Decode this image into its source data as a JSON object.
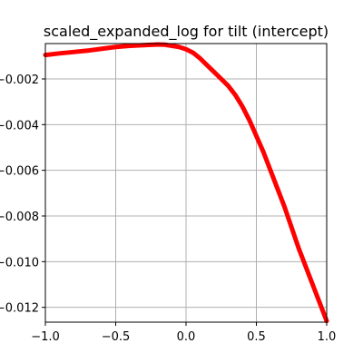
{
  "chart_data": {
    "type": "line",
    "title": "scaled_expanded_log for tilt (intercept)",
    "xlabel": "",
    "ylabel": "",
    "xlim": [
      -1.0,
      1.0
    ],
    "ylim": [
      -0.01265,
      -0.00045
    ],
    "grid": true,
    "x_ticks": [
      -1.0,
      -0.5,
      0.0,
      0.5,
      1.0
    ],
    "x_tick_labels": [
      "−1.0",
      "−0.5",
      "0.0",
      "0.5",
      "1.0"
    ],
    "y_ticks": [
      -0.002,
      -0.004,
      -0.006,
      -0.008,
      -0.01,
      -0.012
    ],
    "y_tick_labels": [
      "−0.002",
      "−0.004",
      "−0.006",
      "−0.008",
      "−0.010",
      "−0.012"
    ],
    "series": [
      {
        "color": "#ff0000",
        "x": [
          -1.0,
          -0.9,
          -0.8,
          -0.7,
          -0.6,
          -0.5,
          -0.4,
          -0.3,
          -0.2,
          -0.15,
          -0.1,
          -0.05,
          0.0,
          0.05,
          0.1,
          0.15,
          0.2,
          0.25,
          0.3,
          0.35,
          0.4,
          0.45,
          0.5,
          0.55,
          0.6,
          0.65,
          0.7,
          0.75,
          0.8,
          0.85,
          0.9,
          0.95,
          1.0
        ],
        "y": [
          -0.00095,
          -0.00088,
          -0.00082,
          -0.00076,
          -0.00068,
          -0.0006,
          -0.00055,
          -0.00052,
          -0.00049,
          -0.0005,
          -0.00055,
          -0.0006,
          -0.0007,
          -0.00085,
          -0.0011,
          -0.0014,
          -0.0017,
          -0.002,
          -0.0023,
          -0.0027,
          -0.0032,
          -0.0038,
          -0.0045,
          -0.0052,
          -0.006,
          -0.0068,
          -0.0076,
          -0.0085,
          -0.0094,
          -0.0102,
          -0.011,
          -0.0118,
          -0.0126
        ]
      }
    ]
  }
}
